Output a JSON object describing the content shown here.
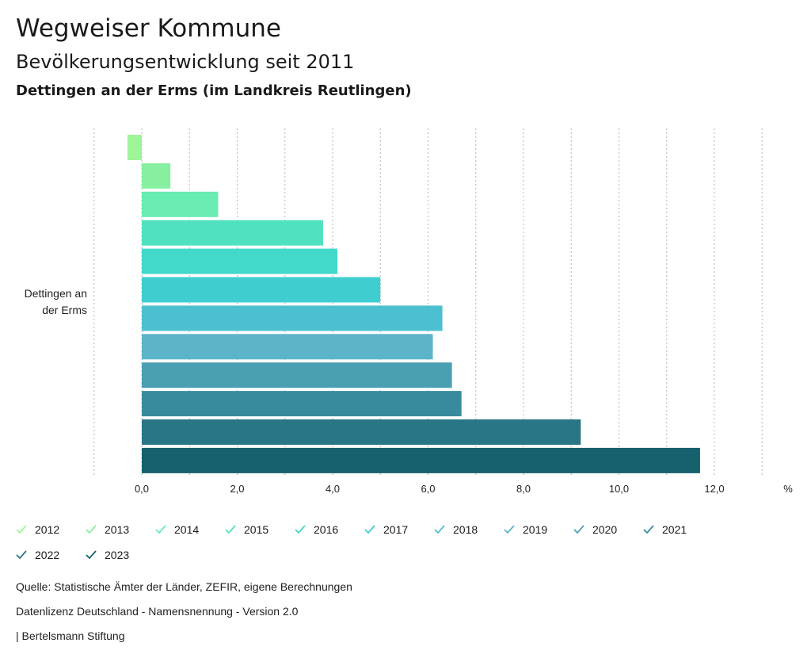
{
  "header": {
    "title": "Wegweiser Kommune",
    "subtitle": "Bevölkerungsentwicklung seit 2011",
    "region": "Dettingen an der Erms (im Landkreis Reutlingen)"
  },
  "chart_data": {
    "type": "bar",
    "orientation": "horizontal",
    "category": [
      "Dettingen an",
      "der Erms"
    ],
    "series": [
      {
        "name": "2012",
        "value": -0.3,
        "color": "#9ef59a"
      },
      {
        "name": "2013",
        "value": 0.6,
        "color": "#86f0a0"
      },
      {
        "name": "2014",
        "value": 1.6,
        "color": "#68ecb2"
      },
      {
        "name": "2015",
        "value": 3.8,
        "color": "#50e2c0"
      },
      {
        "name": "2016",
        "value": 4.1,
        "color": "#42d8ca"
      },
      {
        "name": "2017",
        "value": 5.0,
        "color": "#40cdd0"
      },
      {
        "name": "2018",
        "value": 6.3,
        "color": "#4cc0d0"
      },
      {
        "name": "2019",
        "value": 6.1,
        "color": "#5cb4c8"
      },
      {
        "name": "2020",
        "value": 6.5,
        "color": "#4aa0b2"
      },
      {
        "name": "2021",
        "value": 6.7,
        "color": "#3a8a9e"
      },
      {
        "name": "2022",
        "value": 9.2,
        "color": "#287686"
      },
      {
        "name": "2023",
        "value": 11.7,
        "color": "#17606e"
      }
    ],
    "xlim": [
      -1.0,
      13.0
    ],
    "ticks": [
      "0,0",
      "2,0",
      "4,0",
      "6,0",
      "8,0",
      "10,0",
      "12,0"
    ],
    "tick_values": [
      0,
      2,
      4,
      6,
      8,
      10,
      12
    ],
    "unit": "%"
  },
  "footer": {
    "source": "Quelle: Statistische Ämter der Länder, ZEFIR, eigene Berechnungen",
    "license": "Datenlizenz Deutschland - Namensnennung - Version 2.0",
    "publisher": "| Bertelsmann Stiftung"
  }
}
